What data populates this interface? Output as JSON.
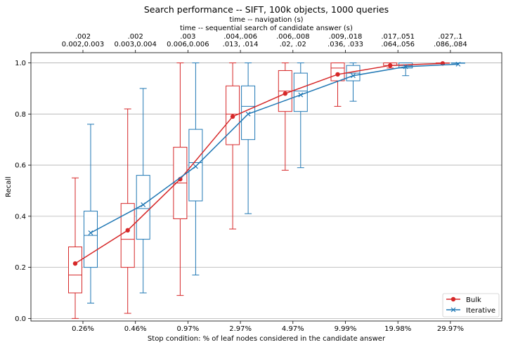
{
  "chart_data": {
    "type": "box",
    "title": "Search performance -- SIFT, 100k objects, 1000 queries",
    "top_axis_title_1": "time -- navigation (s)",
    "top_axis_title_2": "time -- sequential search of candidate answer (s)",
    "xlabel": "Stop condition: % of leaf nodes considered in the candidate answer",
    "ylabel": "Recall",
    "ylim": [
      -0.01,
      1.04
    ],
    "yticks": [
      "0.0",
      "0.2",
      "0.4",
      "0.6",
      "0.8",
      "1.0"
    ],
    "grid": "horizontal",
    "legend_position": "lower right",
    "categories": [
      "0.26%",
      "0.46%",
      "0.97%",
      "2.97%",
      "4.97%",
      "9.99%",
      "19.98%",
      "29.97%"
    ],
    "top_labels_line1": [
      ".002",
      ".002",
      ".003",
      ".004,.006",
      ".006,.008",
      ".009,.018",
      ".017,.051",
      ".027,.1"
    ],
    "top_labels_line2": [
      "0.002,0.003",
      "0.003,0.004",
      "0.006,0.006",
      ".013, .014",
      ".02, .02",
      ".036, .033",
      ".064,.056",
      ".086,.084"
    ],
    "series": [
      {
        "name": "Bulk",
        "color": "#d62728",
        "marker": "circle",
        "mean": [
          0.215,
          0.345,
          0.545,
          0.79,
          0.88,
          0.955,
          0.99,
          0.998
        ],
        "boxes": [
          {
            "whislo": 0.0,
            "q1": 0.1,
            "med": 0.17,
            "q3": 0.28,
            "whishi": 0.55
          },
          {
            "whislo": 0.02,
            "q1": 0.2,
            "med": 0.31,
            "q3": 0.45,
            "whishi": 0.82
          },
          {
            "whislo": 0.09,
            "q1": 0.39,
            "med": 0.53,
            "q3": 0.67,
            "whishi": 1.0
          },
          {
            "whislo": 0.35,
            "q1": 0.68,
            "med": 0.8,
            "q3": 0.91,
            "whishi": 1.0
          },
          {
            "whislo": 0.58,
            "q1": 0.81,
            "med": 0.89,
            "q3": 0.97,
            "whishi": 1.0
          },
          {
            "whislo": 0.83,
            "q1": 0.93,
            "med": 0.98,
            "q3": 1.0,
            "whishi": 1.0
          },
          {
            "whislo": 0.98,
            "q1": 0.99,
            "med": 1.0,
            "q3": 1.0,
            "whishi": 1.0
          },
          {
            "whislo": 1.0,
            "q1": 1.0,
            "med": 1.0,
            "q3": 1.0,
            "whishi": 1.0
          }
        ]
      },
      {
        "name": "Iterative",
        "color": "#1f77b4",
        "marker": "x",
        "mean": [
          0.335,
          0.445,
          0.595,
          0.8,
          0.875,
          0.95,
          0.985,
          0.995
        ],
        "boxes": [
          {
            "whislo": 0.06,
            "q1": 0.2,
            "med": 0.325,
            "q3": 0.42,
            "whishi": 0.76
          },
          {
            "whislo": 0.1,
            "q1": 0.31,
            "med": 0.43,
            "q3": 0.56,
            "whishi": 0.9
          },
          {
            "whislo": 0.17,
            "q1": 0.46,
            "med": 0.61,
            "q3": 0.74,
            "whishi": 1.0
          },
          {
            "whislo": 0.41,
            "q1": 0.7,
            "med": 0.83,
            "q3": 0.91,
            "whishi": 1.0
          },
          {
            "whislo": 0.59,
            "q1": 0.81,
            "med": 0.89,
            "q3": 0.96,
            "whishi": 1.0
          },
          {
            "whislo": 0.85,
            "q1": 0.93,
            "med": 0.96,
            "q3": 0.99,
            "whishi": 1.0
          },
          {
            "whislo": 0.95,
            "q1": 0.98,
            "med": 0.99,
            "q3": 1.0,
            "whishi": 1.0
          },
          {
            "whislo": 1.0,
            "q1": 1.0,
            "med": 1.0,
            "q3": 1.0,
            "whishi": 1.0
          }
        ]
      }
    ]
  }
}
